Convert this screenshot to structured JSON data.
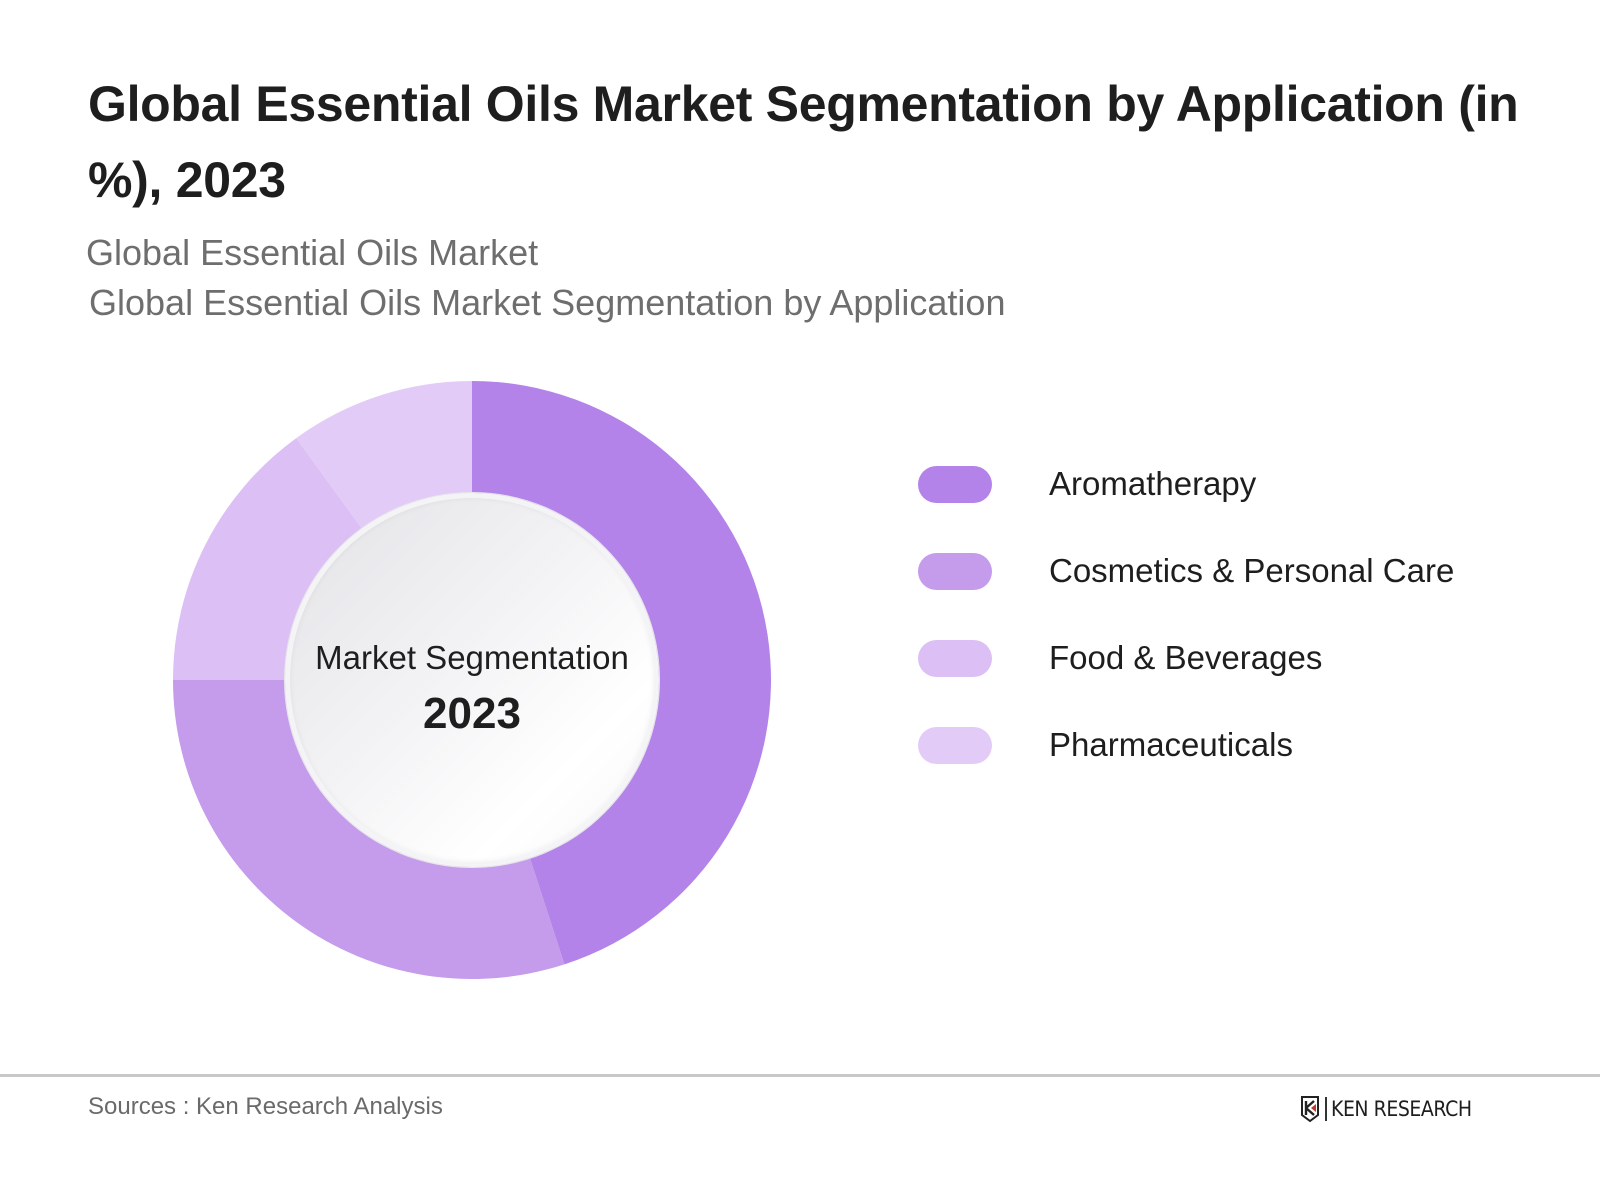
{
  "header": {
    "title": "Global Essential Oils Market Segmentation by Application (in %), 2023",
    "subtitle_1": "Global Essential Oils Market",
    "subtitle_2": "Global Essential Oils Market Segmentation by Application"
  },
  "donut": {
    "center_label": "Market Segmentation",
    "center_year": "2023"
  },
  "legend": {
    "items": [
      {
        "label": "Aromatherapy",
        "color": "#b383e9"
      },
      {
        "label": "Cosmetics & Personal Care",
        "color": "#c59bec"
      },
      {
        "label": "Food & Beverages",
        "color": "#dcc0f5"
      },
      {
        "label": "Pharmaceuticals",
        "color": "#e2ccf7"
      }
    ]
  },
  "footer": {
    "sources": "Sources : Ken Research Analysis",
    "logo_text": "KEN RESEARCH",
    "logo_icon": "ken-research-k-logo-icon"
  },
  "chart_data": {
    "type": "pie",
    "variant": "donut",
    "title": "Global Essential Oils Market Segmentation by Application (in %), 2023",
    "subtitle": "Global Essential Oils Market Segmentation by Application",
    "categories": [
      "Aromatherapy",
      "Cosmetics & Personal Care",
      "Food & Beverages",
      "Pharmaceuticals"
    ],
    "values": [
      45,
      30,
      15,
      10
    ],
    "unit": "%",
    "colors": [
      "#b383e9",
      "#c59bec",
      "#dcc0f5",
      "#e2ccf7"
    ],
    "start_angle": "12 o'clock, clockwise",
    "center_text": [
      "Market Segmentation",
      "2023"
    ],
    "legend_position": "right",
    "data_labels": false
  }
}
